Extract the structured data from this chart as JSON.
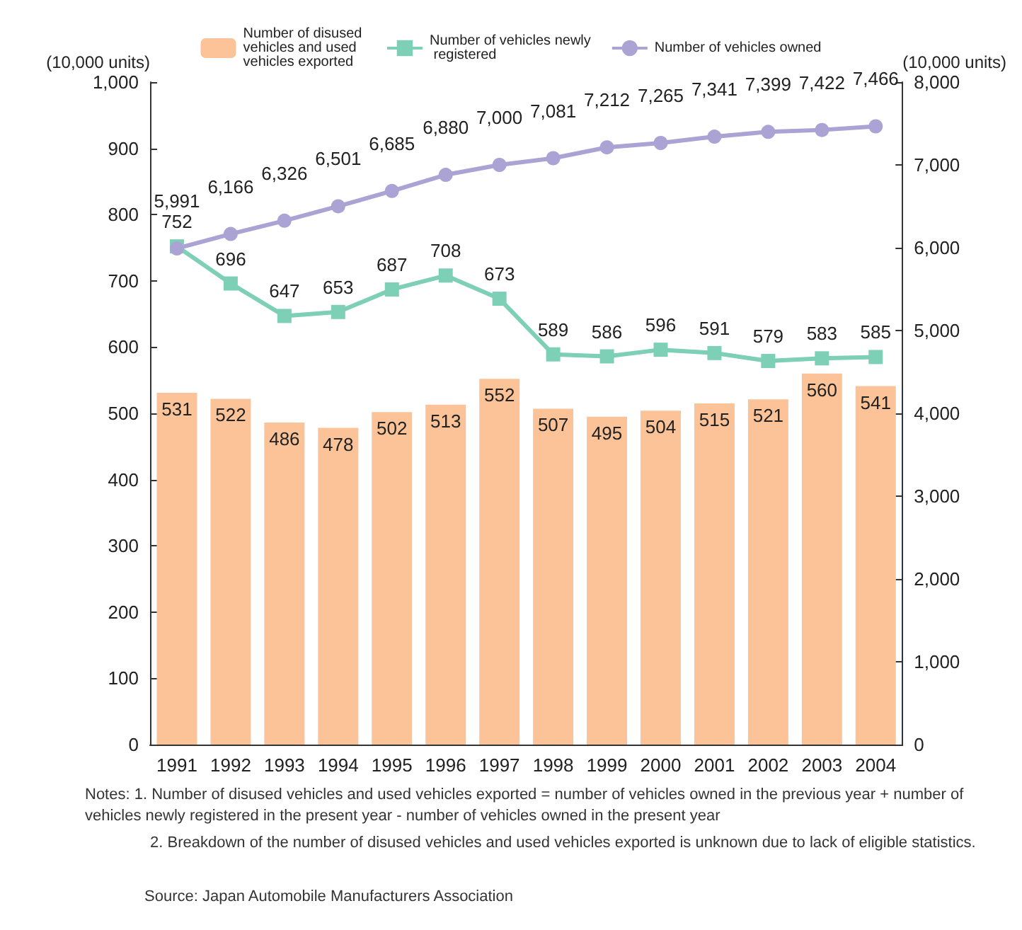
{
  "chart_data": {
    "type": "bar",
    "ylabel": "(10,000 units)",
    "y2label": "(10,000 units)",
    "categories": [
      "1991",
      "1992",
      "1993",
      "1994",
      "1995",
      "1996",
      "1997",
      "1998",
      "1999",
      "2000",
      "2001",
      "2002",
      "2003",
      "2004"
    ],
    "series": [
      {
        "name": "Number of disused vehicles and used vehicles exported",
        "color": "#fbc397",
        "values": [
          531,
          522,
          486,
          478,
          502,
          513,
          552,
          507,
          495,
          504,
          515,
          521,
          560,
          541
        ]
      },
      {
        "name": "Number of vehicles newly registered",
        "type": "line",
        "marker": "square",
        "color": "#7dcfb6",
        "values": [
          752,
          696,
          647,
          653,
          687,
          708,
          673,
          589,
          586,
          596,
          591,
          579,
          583,
          585
        ]
      },
      {
        "name": "Number of vehicles owned",
        "type": "line",
        "marker": "circle",
        "axis": "y2",
        "color": "#aaa3d4",
        "values": [
          5991,
          6166,
          6326,
          6501,
          6685,
          6880,
          7000,
          7081,
          7212,
          7265,
          7341,
          7399,
          7422,
          7466
        ],
        "value_labels": [
          "5,991",
          "6,166",
          "6,326",
          "6,501",
          "6,685",
          "6,880",
          "7,000",
          "7,081",
          "7,212",
          "7,265",
          "7,341",
          "7,399",
          "7,422",
          "7,466"
        ]
      }
    ],
    "ylim": [
      0,
      1000
    ],
    "yticks": [
      0,
      100,
      200,
      300,
      400,
      500,
      600,
      700,
      800,
      900,
      {
        "value": 1000,
        "label": "1,000"
      }
    ],
    "y2lim": [
      0,
      8000
    ],
    "y2ticks": [
      0,
      {
        "value": 1000,
        "label": "1,000"
      },
      {
        "value": 2000,
        "label": "2,000"
      },
      {
        "value": 3000,
        "label": "3,000"
      },
      {
        "value": 4000,
        "label": "4,000"
      },
      {
        "value": 5000,
        "label": "5,000"
      },
      {
        "value": 6000,
        "label": "6,000"
      },
      {
        "value": 7000,
        "label": "7,000"
      },
      {
        "value": 8000,
        "label": "8,000"
      }
    ],
    "data_labels": true,
    "grid": false,
    "legend": "top",
    "annotations": [
      "Notes: 1. Number of disused vehicles and used vehicles exported = number of vehicles owned in the previous year + number of vehicles newly registered in the present year - number of vehicles owned in the present year",
      "2. Breakdown of the number of disused vehicles and used vehicles exported is unknown due to lack of eligible statistics.",
      "Source: Japan Automobile Manufacturers Association"
    ]
  }
}
